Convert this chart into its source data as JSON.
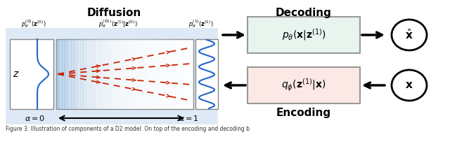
{
  "bg_color": "#ffffff",
  "title_diffusion": "Diffusion",
  "title_decoding": "Decoding",
  "title_encoding": "Encoding",
  "box_decode_color": "#e8f4ee",
  "box_encode_color": "#fce8e4",
  "box_border_color": "#999999",
  "diffusion_panel_color": "#dce8f5",
  "label_alpha0": "$\\alpha = 0$",
  "label_alpha1": "$\\alpha = 1$"
}
